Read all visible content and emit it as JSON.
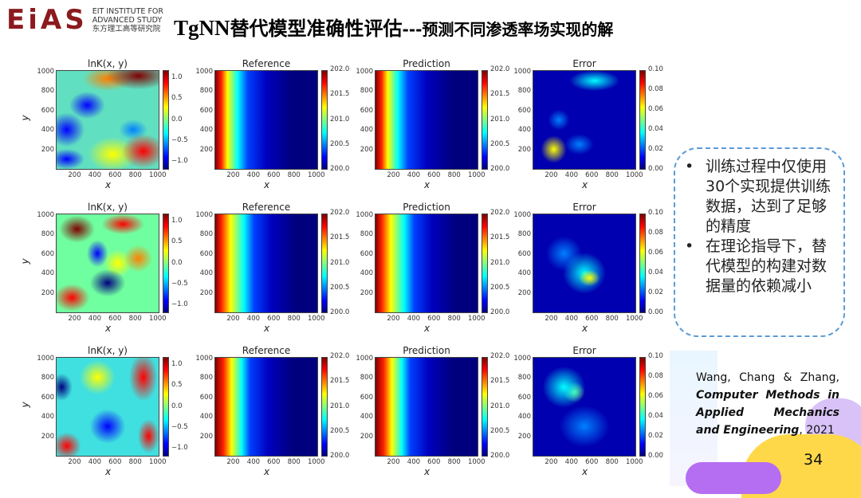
{
  "logo": {
    "mark": "EiAS",
    "line1": "EIT INSTITUTE FOR",
    "line2": "ADVANCED STUDY",
    "line3": "东方理工高等研究院"
  },
  "title": {
    "en": "TgNN",
    "main": "替代模型准确性评估",
    "sub": "---预测不同渗透率场实现的解"
  },
  "plots": {
    "col_titles": [
      "lnK(x, y)",
      "Reference",
      "Prediction",
      "Error"
    ],
    "xlabel": "x",
    "ylabel": "y",
    "x_ticks": [
      "200",
      "400",
      "600",
      "800",
      "1000"
    ],
    "y_ticks": [
      "200",
      "400",
      "600",
      "800",
      "1000"
    ],
    "cbar_ticks": {
      "lnK": [
        "−1.0",
        "−0.5",
        "0.0",
        "0.5",
        "1.0"
      ],
      "head": [
        "200.0",
        "200.5",
        "201.0",
        "201.5",
        "202.0"
      ],
      "error": [
        "0.00",
        "0.02",
        "0.04",
        "0.06",
        "0.08",
        "0.10"
      ]
    },
    "colormap": "jet",
    "rows": 3
  },
  "notes": {
    "bullets": [
      "训练过程中仅使用30个实现提供训练数据，达到了足够的精度",
      "在理论指导下，替代模型的构建对数据量的依赖减小"
    ],
    "bullet_symbol": "•"
  },
  "reference": {
    "authors": "Wang, Chang & Zhang,",
    "journal": "Computer Methods in Applied Mechanics and Engineering",
    "year": ", 2021"
  },
  "page_number": "34",
  "colors": {
    "logo": "#8b1a1f",
    "border": "#5b9bd5"
  }
}
